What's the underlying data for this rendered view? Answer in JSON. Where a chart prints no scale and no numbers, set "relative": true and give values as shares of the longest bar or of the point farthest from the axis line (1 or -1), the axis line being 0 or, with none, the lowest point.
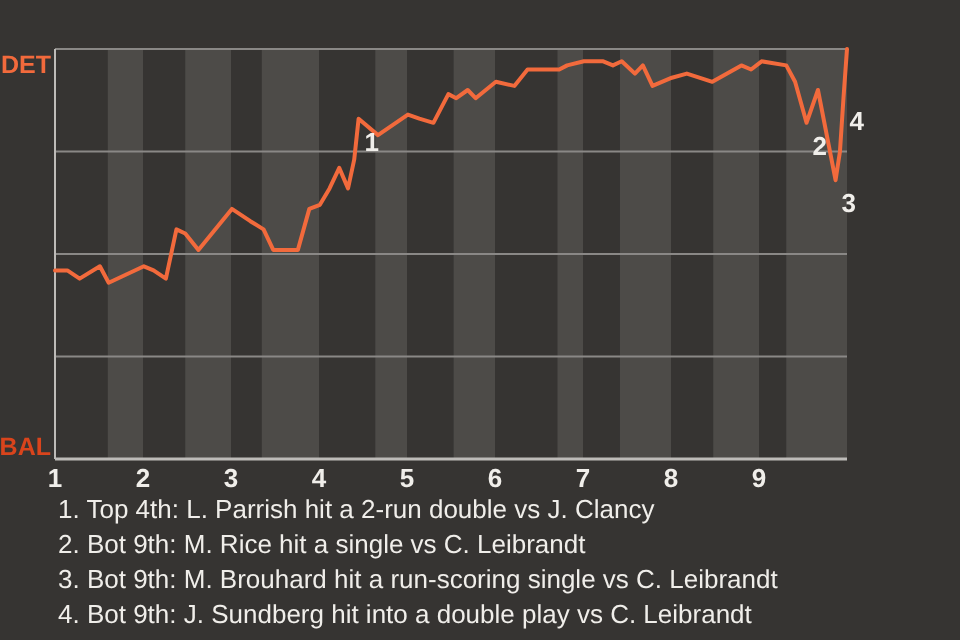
{
  "chart_data": {
    "type": "line",
    "relative": true,
    "xlim": [
      1,
      10
    ],
    "xticks": [
      1,
      2,
      3,
      4,
      5,
      6,
      7,
      8,
      9
    ],
    "marker": "none",
    "line_style": "solid",
    "series": [
      {
        "color": "#f26a3c",
        "x": [
          1.0,
          1.14,
          1.28,
          1.51,
          1.61,
          2.01,
          2.12,
          2.26,
          2.38,
          2.48,
          2.63,
          3.01,
          3.22,
          3.37,
          3.48,
          3.76,
          3.89,
          4.01,
          4.12,
          4.23,
          4.33,
          4.4,
          4.45,
          4.67,
          5.01,
          5.14,
          5.3,
          5.47,
          5.56,
          5.69,
          5.78,
          6.01,
          6.22,
          6.37,
          6.73,
          6.82,
          7.01,
          7.23,
          7.34,
          7.44,
          7.59,
          7.68,
          7.79,
          8.01,
          8.18,
          8.47,
          8.8,
          8.91,
          9.03,
          9.31,
          9.41,
          9.54,
          9.67,
          9.87,
          9.92,
          9.96,
          10.0
        ],
        "values": [
          0.46,
          0.46,
          0.44,
          0.47,
          0.43,
          0.47,
          0.46,
          0.44,
          0.56,
          0.55,
          0.51,
          0.61,
          0.58,
          0.56,
          0.51,
          0.51,
          0.61,
          0.62,
          0.66,
          0.71,
          0.66,
          0.73,
          0.83,
          0.79,
          0.84,
          0.83,
          0.82,
          0.89,
          0.88,
          0.9,
          0.88,
          0.92,
          0.91,
          0.95,
          0.95,
          0.96,
          0.97,
          0.97,
          0.96,
          0.97,
          0.94,
          0.96,
          0.91,
          0.93,
          0.94,
          0.92,
          0.96,
          0.95,
          0.97,
          0.96,
          0.92,
          0.82,
          0.9,
          0.68,
          0.75,
          0.88,
          1.0
        ]
      }
    ],
    "ref_lines": [
      {
        "axis": "y",
        "value": 0.25,
        "color": "#8a8886"
      },
      {
        "axis": "y",
        "value": 0.5,
        "color": "#8a8886"
      },
      {
        "axis": "y",
        "value": 0.75,
        "color": "#8a8886"
      },
      {
        "axis": "y",
        "value": 1,
        "color": "#8a8886"
      }
    ],
    "bands": [
      {
        "axis": "x",
        "from": 1.6,
        "to": 2.0,
        "color": "#4d4b48"
      },
      {
        "axis": "x",
        "from": 2.48,
        "to": 3.0,
        "color": "#4d4b48"
      },
      {
        "axis": "x",
        "from": 3.35,
        "to": 4.0,
        "color": "#4d4b48"
      },
      {
        "axis": "x",
        "from": 4.64,
        "to": 5.0,
        "color": "#4d4b48"
      },
      {
        "axis": "x",
        "from": 5.53,
        "to": 6.0,
        "color": "#4d4b48"
      },
      {
        "axis": "x",
        "from": 6.71,
        "to": 7.0,
        "color": "#4d4b48"
      },
      {
        "axis": "x",
        "from": 7.42,
        "to": 8.0,
        "color": "#4d4b48"
      },
      {
        "axis": "x",
        "from": 8.48,
        "to": 9.0,
        "color": "#4d4b48"
      },
      {
        "axis": "x",
        "from": 9.31,
        "to": 10,
        "color": "#4d4b48"
      }
    ],
    "annotations": [
      "DET",
      "BAL",
      {
        "text": "1",
        "x": 4.45,
        "y": 0.83
      },
      {
        "text": "2",
        "x": 9.54,
        "y": 0.82
      },
      {
        "text": "3",
        "x": 9.87,
        "y": 0.68
      },
      {
        "text": "4",
        "x": 9.96,
        "y": 0.88
      },
      "1. Top 4th: L. Parrish hit a 2-run double vs J. Clancy",
      "2. Bot 9th: M. Rice hit a single vs C. Leibrandt",
      "3. Bot 9th: M. Brouhard hit a run-scoring single vs C. Leibrandt",
      "4. Bot 9th: J. Sundberg hit into a double play vs C. Leibrandt"
    ]
  }
}
